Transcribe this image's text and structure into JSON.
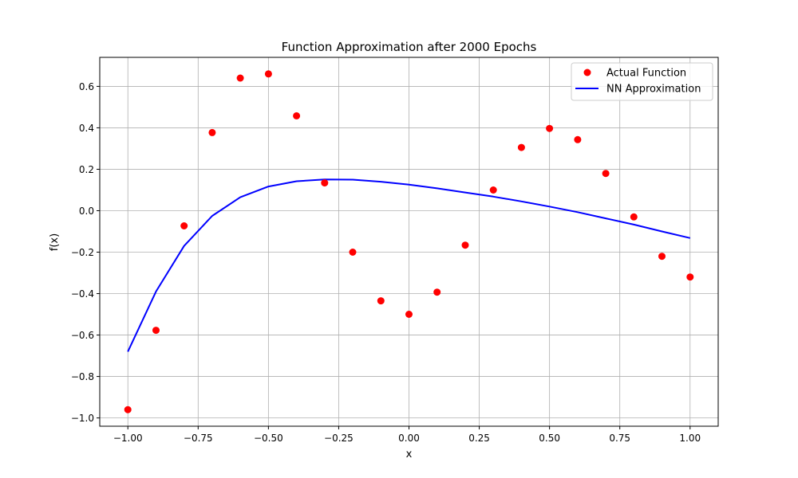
{
  "chart_data": {
    "type": "line",
    "title": "Function Approximation after 2000 Epochs",
    "xlabel": "x",
    "ylabel": "f(x)",
    "xlim": [
      -1.1,
      1.1
    ],
    "ylim": [
      -1.04,
      0.74
    ],
    "xticks": [
      -1.0,
      -0.75,
      -0.5,
      -0.25,
      0.0,
      0.25,
      0.5,
      0.75,
      1.0
    ],
    "xtick_labels": [
      "−1.00",
      "−0.75",
      "−0.50",
      "−0.25",
      "0.00",
      "0.25",
      "0.50",
      "0.75",
      "1.00"
    ],
    "yticks": [
      -1.0,
      -0.8,
      -0.6,
      -0.4,
      -0.2,
      0.0,
      0.2,
      0.4,
      0.6
    ],
    "ytick_labels": [
      "−1.0",
      "−0.8",
      "−0.6",
      "−0.4",
      "−0.2",
      "0.0",
      "0.2",
      "0.4",
      "0.6"
    ],
    "grid": true,
    "legend_position": "top-right",
    "series": [
      {
        "name": "Actual Function",
        "kind": "scatter",
        "color": "#ff0000",
        "x": [
          -1.0,
          -0.9,
          -0.8,
          -0.7,
          -0.6,
          -0.5,
          -0.4,
          -0.3,
          -0.2,
          -0.1,
          0.0,
          0.1,
          0.2,
          0.3,
          0.4,
          0.5,
          0.6,
          0.7,
          0.8,
          0.9,
          1.0
        ],
        "y": [
          -0.96,
          -0.577,
          -0.073,
          0.377,
          0.64,
          0.66,
          0.458,
          0.134,
          -0.2,
          -0.435,
          -0.5,
          -0.393,
          -0.166,
          0.1,
          0.305,
          0.397,
          0.343,
          0.18,
          -0.03,
          -0.22,
          -0.32
        ]
      },
      {
        "name": "NN Approximation",
        "kind": "line",
        "color": "#0000ff",
        "x": [
          -1.0,
          -0.9,
          -0.8,
          -0.7,
          -0.6,
          -0.5,
          -0.4,
          -0.3,
          -0.2,
          -0.1,
          0.0,
          0.1,
          0.2,
          0.3,
          0.4,
          0.5,
          0.6,
          0.7,
          0.8,
          0.9,
          1.0
        ],
        "y": [
          -0.68,
          -0.39,
          -0.17,
          -0.025,
          0.065,
          0.117,
          0.142,
          0.151,
          0.15,
          0.14,
          0.126,
          0.108,
          0.088,
          0.068,
          0.045,
          0.02,
          -0.007,
          -0.037,
          -0.067,
          -0.1,
          -0.132
        ]
      }
    ]
  }
}
